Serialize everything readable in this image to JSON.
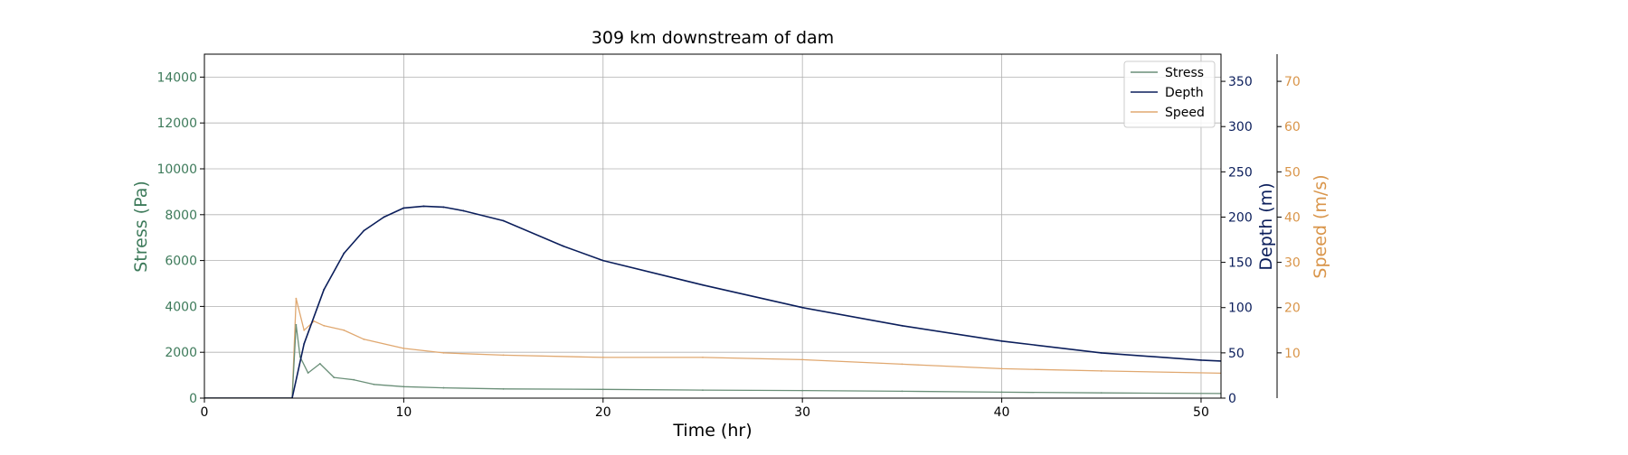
{
  "chart_data": {
    "type": "line",
    "title": "309 km downstream of dam",
    "xlabel": "Time (hr)",
    "xlim": [
      0,
      51
    ],
    "xticks": [
      0,
      10,
      20,
      30,
      40,
      50
    ],
    "grid": true,
    "legend_placement": "top-right",
    "axes": {
      "stress": {
        "label": "Stress (Pa)",
        "ylim": [
          0,
          15000
        ],
        "ticks": [
          0,
          2000,
          4000,
          6000,
          8000,
          10000,
          12000,
          14000
        ],
        "color": "#3d7a5a"
      },
      "depth": {
        "label": "Depth (m)",
        "ylim": [
          0,
          380
        ],
        "ticks": [
          0,
          50,
          100,
          150,
          200,
          250,
          300,
          350
        ],
        "color": "#0b1e5b"
      },
      "speed": {
        "label": "Speed (m/s)",
        "ylim": [
          0,
          76
        ],
        "ticks": [
          10,
          20,
          30,
          40,
          50,
          60,
          70
        ],
        "color": "#d9954a"
      }
    },
    "series": [
      {
        "name": "Stress",
        "axis": "stress",
        "color": "#6a8f78",
        "x": [
          0,
          4.4,
          4.6,
          4.8,
          5.2,
          5.8,
          6.5,
          7.5,
          8.5,
          10,
          12,
          15,
          20,
          25,
          30,
          35,
          40,
          45,
          51
        ],
        "y": [
          0,
          0,
          3200,
          1800,
          1100,
          1500,
          900,
          800,
          600,
          500,
          450,
          400,
          380,
          350,
          330,
          300,
          260,
          230,
          200
        ]
      },
      {
        "name": "Depth",
        "axis": "depth",
        "color": "#0b1e5b",
        "x": [
          0,
          4.4,
          5,
          6,
          7,
          8,
          9,
          10,
          11,
          12,
          13,
          15,
          18,
          20,
          25,
          30,
          35,
          40,
          45,
          50,
          51
        ],
        "y": [
          0,
          0,
          60,
          120,
          160,
          185,
          200,
          210,
          212,
          211,
          207,
          196,
          168,
          152,
          125,
          100,
          80,
          63,
          50,
          42,
          41
        ]
      },
      {
        "name": "Speed",
        "axis": "speed",
        "color": "#e0a870",
        "x": [
          0,
          4.4,
          4.6,
          5,
          5.5,
          6,
          7,
          8,
          10,
          12,
          15,
          20,
          25,
          30,
          35,
          40,
          45,
          51
        ],
        "y": [
          0,
          0,
          22,
          15,
          17,
          16,
          15,
          13,
          11,
          10,
          9.5,
          9,
          9,
          8.5,
          7.5,
          6.5,
          6,
          5.5
        ]
      }
    ]
  }
}
